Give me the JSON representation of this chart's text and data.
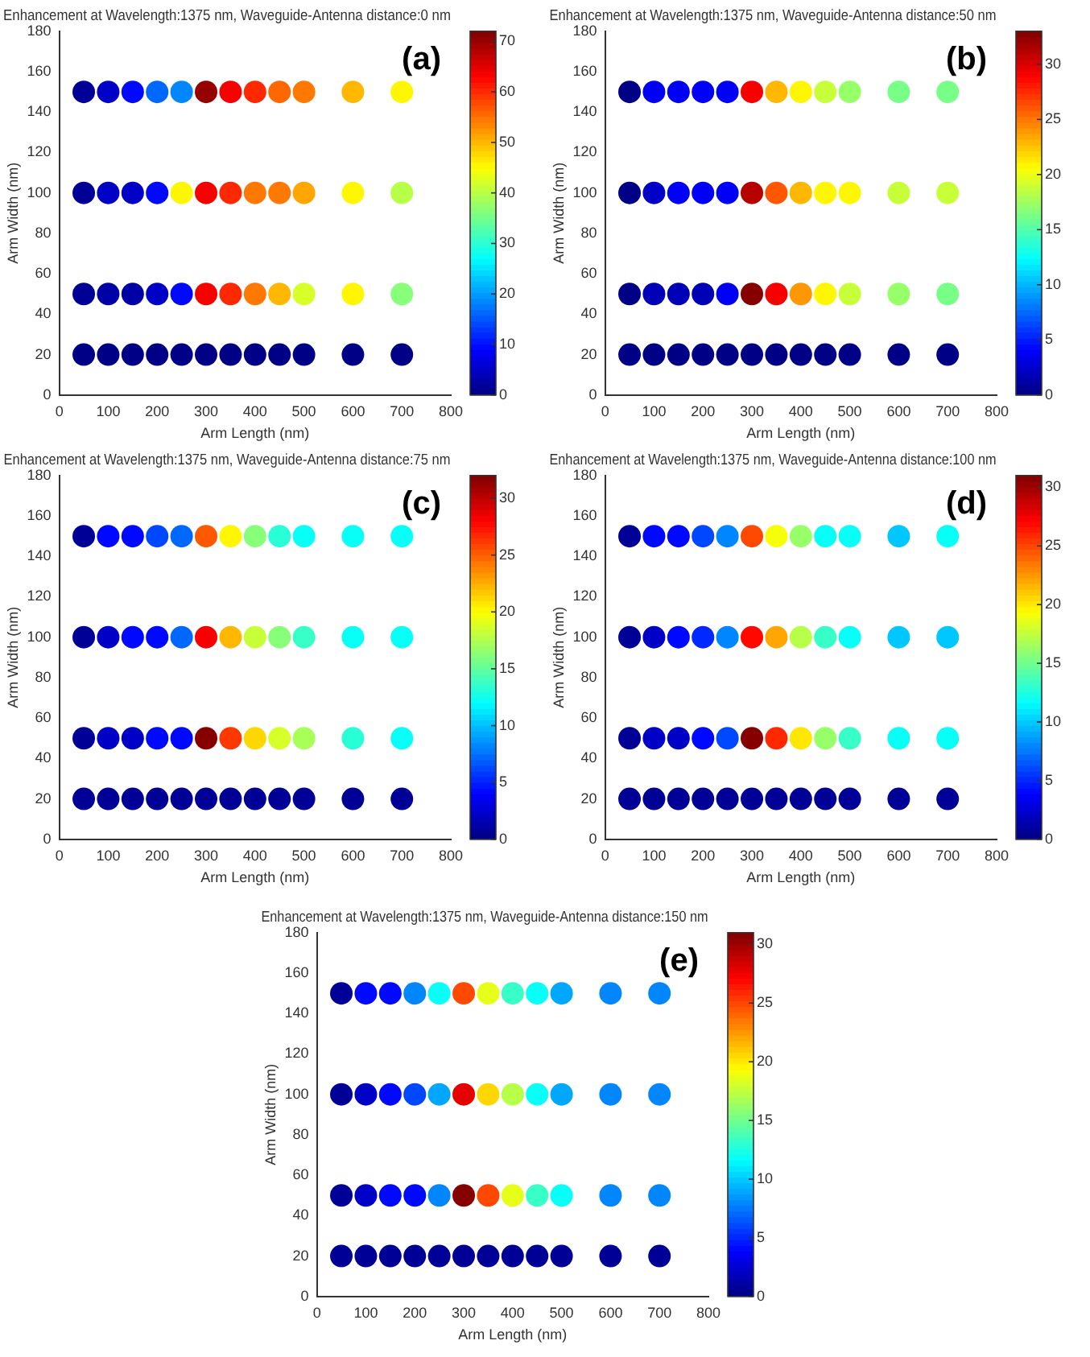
{
  "chart_data": [
    {
      "type": "scatter",
      "title": "Enhancement at Wavelength:1375 nm, Waveguide-Antenna distance:0 nm",
      "xlabel": "Arm Length (nm)",
      "ylabel": "Arm Width (nm)",
      "annotations": [
        "(a)"
      ],
      "marker": "circle",
      "grid": false,
      "legend": false,
      "xlim": [
        0,
        800
      ],
      "xticks": [
        0,
        100,
        200,
        300,
        400,
        500,
        600,
        700,
        800
      ],
      "ylim": [
        0,
        180
      ],
      "yticks": [
        0,
        20,
        40,
        60,
        80,
        100,
        120,
        140,
        160,
        180
      ],
      "clim": [
        0,
        72
      ],
      "cticks": [
        0,
        10,
        20,
        30,
        40,
        50,
        60,
        70
      ],
      "x": [
        50,
        100,
        150,
        200,
        250,
        300,
        350,
        400,
        450,
        500,
        600,
        700,
        50,
        100,
        150,
        200,
        250,
        300,
        350,
        400,
        450,
        500,
        600,
        700,
        50,
        100,
        150,
        200,
        250,
        300,
        350,
        400,
        450,
        500,
        600,
        700,
        50,
        100,
        150,
        200,
        250,
        300,
        350,
        400,
        450,
        500,
        600,
        700
      ],
      "values": [
        150,
        150,
        150,
        150,
        150,
        150,
        150,
        150,
        150,
        150,
        150,
        150,
        100,
        100,
        100,
        100,
        100,
        100,
        100,
        100,
        100,
        100,
        100,
        100,
        50,
        50,
        50,
        50,
        50,
        50,
        50,
        50,
        50,
        50,
        50,
        50,
        20,
        20,
        20,
        20,
        20,
        20,
        20,
        20,
        20,
        20,
        20,
        20
      ],
      "cvalues": [
        2,
        5,
        9,
        16,
        19,
        70,
        64,
        60,
        56,
        54,
        50,
        45,
        2,
        5,
        5,
        9,
        45,
        64,
        60,
        55,
        54,
        51,
        45,
        40,
        2,
        3,
        3,
        5,
        9,
        64,
        60,
        55,
        50,
        42,
        45,
        37,
        1,
        1,
        1,
        1,
        1,
        1,
        1,
        1,
        1,
        1,
        1,
        1
      ]
    },
    {
      "type": "scatter",
      "title": "Enhancement at Wavelength:1375 nm, Waveguide-Antenna distance:50 nm",
      "xlabel": "Arm Length (nm)",
      "ylabel": "Arm Width (nm)",
      "annotations": [
        "(b)"
      ],
      "marker": "circle",
      "grid": false,
      "legend": false,
      "xlim": [
        0,
        800
      ],
      "xticks": [
        0,
        100,
        200,
        300,
        400,
        500,
        600,
        700,
        800
      ],
      "ylim": [
        0,
        180
      ],
      "yticks": [
        0,
        20,
        40,
        60,
        80,
        100,
        120,
        140,
        160,
        180
      ],
      "clim": [
        0,
        33
      ],
      "cticks": [
        0,
        5,
        10,
        15,
        20,
        25,
        30
      ],
      "x": [
        50,
        100,
        150,
        200,
        250,
        300,
        350,
        400,
        450,
        500,
        600,
        700,
        50,
        100,
        150,
        200,
        250,
        300,
        350,
        400,
        450,
        500,
        600,
        700,
        50,
        100,
        150,
        200,
        250,
        300,
        350,
        400,
        450,
        500,
        600,
        700,
        50,
        100,
        150,
        200,
        250,
        300,
        350,
        400,
        450,
        500,
        600,
        700
      ],
      "values": [
        150,
        150,
        150,
        150,
        150,
        150,
        150,
        150,
        150,
        150,
        150,
        150,
        100,
        100,
        100,
        100,
        100,
        100,
        100,
        100,
        100,
        100,
        100,
        100,
        50,
        50,
        50,
        50,
        50,
        50,
        50,
        50,
        50,
        50,
        50,
        50,
        20,
        20,
        20,
        20,
        20,
        20,
        20,
        20,
        20,
        20,
        20,
        20
      ],
      "cvalues": [
        0.5,
        4,
        4,
        4,
        4,
        29,
        23,
        21,
        19,
        17.5,
        16,
        16,
        0.5,
        2.5,
        4,
        4,
        4,
        31,
        26,
        23,
        21,
        21,
        19,
        19,
        0.5,
        2,
        2,
        2,
        4,
        33,
        29,
        24,
        21,
        19,
        17.5,
        16,
        0.5,
        0.5,
        0.5,
        0.5,
        0.5,
        0.5,
        0.5,
        0.5,
        0.5,
        0.5,
        0.5,
        0.5
      ]
    },
    {
      "type": "scatter",
      "title": "Enhancement at Wavelength:1375 nm, Waveguide-Antenna distance:75 nm",
      "xlabel": "Arm Length (nm)",
      "ylabel": "Arm Width (nm)",
      "annotations": [
        "(c)"
      ],
      "marker": "circle",
      "grid": false,
      "legend": false,
      "xlim": [
        0,
        800
      ],
      "xticks": [
        0,
        100,
        200,
        300,
        400,
        500,
        600,
        700,
        800
      ],
      "ylim": [
        0,
        180
      ],
      "yticks": [
        0,
        20,
        40,
        60,
        80,
        100,
        120,
        140,
        160,
        180
      ],
      "clim": [
        0,
        32
      ],
      "cticks": [
        0,
        5,
        10,
        15,
        20,
        25,
        30
      ],
      "x": [
        50,
        100,
        150,
        200,
        250,
        300,
        350,
        400,
        450,
        500,
        600,
        700,
        50,
        100,
        150,
        200,
        250,
        300,
        350,
        400,
        450,
        500,
        600,
        700,
        50,
        100,
        150,
        200,
        250,
        300,
        350,
        400,
        450,
        500,
        600,
        700,
        50,
        100,
        150,
        200,
        250,
        300,
        350,
        400,
        450,
        500,
        600,
        700
      ],
      "values": [
        150,
        150,
        150,
        150,
        150,
        150,
        150,
        150,
        150,
        150,
        150,
        150,
        100,
        100,
        100,
        100,
        100,
        100,
        100,
        100,
        100,
        100,
        100,
        100,
        50,
        50,
        50,
        50,
        50,
        50,
        50,
        50,
        50,
        50,
        50,
        50,
        20,
        20,
        20,
        20,
        20,
        20,
        20,
        20,
        20,
        20,
        20,
        20
      ],
      "cvalues": [
        0.5,
        4,
        4,
        6,
        7,
        25,
        20,
        16,
        13,
        12,
        12,
        12,
        0.5,
        2,
        4,
        4,
        7,
        28,
        22,
        18,
        16,
        13.5,
        12,
        12,
        0.5,
        2,
        2,
        4,
        4,
        32,
        26,
        21,
        18.5,
        17,
        13,
        12,
        0.5,
        0.5,
        0.5,
        0.5,
        0.5,
        0.5,
        0.5,
        0.5,
        0.5,
        0.5,
        0.5,
        0.5
      ]
    },
    {
      "type": "scatter",
      "title": "Enhancement at Wavelength:1375 nm, Waveguide-Antenna distance:100 nm",
      "xlabel": "Arm Length (nm)",
      "ylabel": "Arm Width (nm)",
      "annotations": [
        "(d)"
      ],
      "marker": "circle",
      "grid": false,
      "legend": false,
      "xlim": [
        0,
        800
      ],
      "xticks": [
        0,
        100,
        200,
        300,
        400,
        500,
        600,
        700,
        800
      ],
      "ylim": [
        0,
        180
      ],
      "yticks": [
        0,
        20,
        40,
        60,
        80,
        100,
        120,
        140,
        160,
        180
      ],
      "clim": [
        0,
        31
      ],
      "cticks": [
        0,
        5,
        10,
        15,
        20,
        25,
        30
      ],
      "x": [
        50,
        100,
        150,
        200,
        250,
        300,
        350,
        400,
        450,
        500,
        600,
        700,
        50,
        100,
        150,
        200,
        250,
        300,
        350,
        400,
        450,
        500,
        600,
        700,
        50,
        100,
        150,
        200,
        250,
        300,
        350,
        400,
        450,
        500,
        600,
        700,
        50,
        100,
        150,
        200,
        250,
        300,
        350,
        400,
        450,
        500,
        600,
        700
      ],
      "values": [
        150,
        150,
        150,
        150,
        150,
        150,
        150,
        150,
        150,
        150,
        150,
        150,
        100,
        100,
        100,
        100,
        100,
        100,
        100,
        100,
        100,
        100,
        100,
        100,
        50,
        50,
        50,
        50,
        50,
        50,
        50,
        50,
        50,
        50,
        50,
        50,
        20,
        20,
        20,
        20,
        20,
        20,
        20,
        20,
        20,
        20,
        20,
        20
      ],
      "cvalues": [
        0.5,
        4,
        4,
        6,
        8,
        25,
        19,
        16,
        12,
        12,
        10,
        12,
        0.5,
        2,
        4,
        5,
        8,
        27,
        22,
        17,
        13.5,
        12,
        10,
        10,
        0.5,
        2,
        2,
        4,
        6,
        31,
        26,
        20,
        16,
        13.5,
        12,
        12,
        0.5,
        0.5,
        0.5,
        0.5,
        0.5,
        0.5,
        0.5,
        0.5,
        0.5,
        0.5,
        0.5,
        0.5
      ]
    },
    {
      "type": "scatter",
      "title": "Enhancement at Wavelength:1375 nm, Waveguide-Antenna distance:150 nm",
      "xlabel": "Arm Length (nm)",
      "ylabel": "Arm Width (nm)",
      "annotations": [
        "(e)"
      ],
      "marker": "circle",
      "grid": false,
      "legend": false,
      "xlim": [
        0,
        800
      ],
      "xticks": [
        0,
        100,
        200,
        300,
        400,
        500,
        600,
        700,
        800
      ],
      "ylim": [
        0,
        180
      ],
      "yticks": [
        0,
        20,
        40,
        60,
        80,
        100,
        120,
        140,
        160,
        180
      ],
      "clim": [
        0,
        31
      ],
      "cticks": [
        0,
        5,
        10,
        15,
        20,
        25,
        30
      ],
      "x": [
        50,
        100,
        150,
        200,
        250,
        300,
        350,
        400,
        450,
        500,
        600,
        700,
        50,
        100,
        150,
        200,
        250,
        300,
        350,
        400,
        450,
        500,
        600,
        700,
        50,
        100,
        150,
        200,
        250,
        300,
        350,
        400,
        450,
        500,
        600,
        700,
        50,
        100,
        150,
        200,
        250,
        300,
        350,
        400,
        450,
        500,
        600,
        700
      ],
      "values": [
        150,
        150,
        150,
        150,
        150,
        150,
        150,
        150,
        150,
        150,
        150,
        150,
        100,
        100,
        100,
        100,
        100,
        100,
        100,
        100,
        100,
        100,
        100,
        100,
        50,
        50,
        50,
        50,
        50,
        50,
        50,
        50,
        50,
        50,
        50,
        50,
        20,
        20,
        20,
        20,
        20,
        20,
        20,
        20,
        20,
        20,
        20,
        20
      ],
      "cvalues": [
        0.5,
        4,
        4,
        8,
        12,
        25,
        18.5,
        13.5,
        12,
        9,
        8,
        8,
        0.5,
        2,
        4,
        6,
        9,
        28,
        20.5,
        17,
        12,
        9,
        8,
        8,
        0.5,
        2,
        4,
        4,
        8,
        31,
        25,
        18.5,
        13.5,
        12,
        8,
        8,
        0.5,
        0.5,
        0.5,
        0.5,
        0.5,
        0.5,
        0.5,
        0.5,
        0.5,
        0.5,
        0.5,
        0.5
      ]
    }
  ]
}
